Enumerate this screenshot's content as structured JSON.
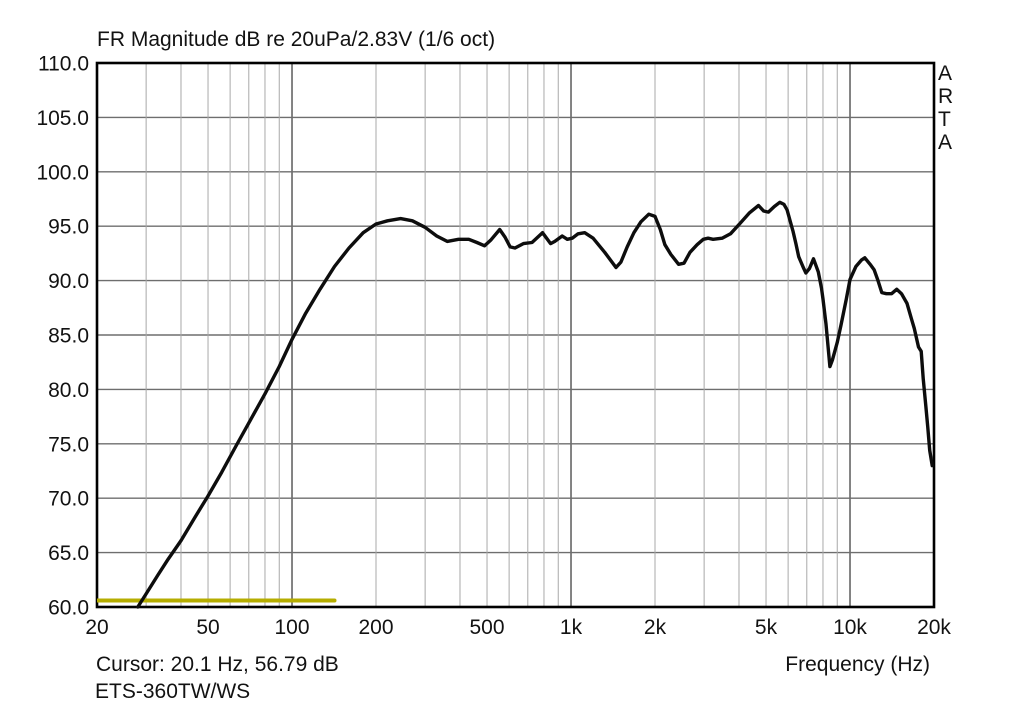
{
  "header": {
    "title": "FR Magnitude dB re 20uPa/2.83V (1/6 oct)"
  },
  "branding": {
    "name": "ARTA",
    "letters": [
      "A",
      "R",
      "T",
      "A"
    ]
  },
  "status": {
    "cursor_readout": "Cursor: 20.1 Hz, 56.79 dB",
    "file_label": "ETS-360TW/WS",
    "x_axis_label": "Frequency (Hz)"
  },
  "colors": {
    "background": "#ffffff",
    "text": "#121212",
    "plot_border": "#000000",
    "grid_major": "#6e6e6e",
    "grid_minor": "#a8a8a8",
    "curve": "#0d0d0d",
    "marker_line": "#b5ad00"
  },
  "chart_data": {
    "type": "line",
    "title": "FR Magnitude dB re 20uPa/2.83V (1/6 oct)",
    "xlabel": "Frequency (Hz)",
    "ylabel": "Magnitude dB re 20uPa/2.83V",
    "x_scale": "log",
    "xlim": [
      20,
      20000
    ],
    "ylim": [
      60,
      110
    ],
    "grid": "on",
    "legend": "none",
    "y_ticks": [
      {
        "value": 110,
        "label": "110.0"
      },
      {
        "value": 105,
        "label": "105.0"
      },
      {
        "value": 100,
        "label": "100.0"
      },
      {
        "value": 95,
        "label": "95.0"
      },
      {
        "value": 90,
        "label": "90.0"
      },
      {
        "value": 85,
        "label": "85.0"
      },
      {
        "value": 80,
        "label": "80.0"
      },
      {
        "value": 75,
        "label": "75.0"
      },
      {
        "value": 70,
        "label": "70.0"
      },
      {
        "value": 65,
        "label": "65.0"
      },
      {
        "value": 60,
        "label": "60.0"
      }
    ],
    "x_ticks": [
      {
        "value": 20,
        "label": "20"
      },
      {
        "value": 50,
        "label": "50"
      },
      {
        "value": 100,
        "label": "100"
      },
      {
        "value": 200,
        "label": "200"
      },
      {
        "value": 500,
        "label": "500"
      },
      {
        "value": 1000,
        "label": "1k"
      },
      {
        "value": 2000,
        "label": "2k"
      },
      {
        "value": 5000,
        "label": "5k"
      },
      {
        "value": 10000,
        "label": "10k"
      },
      {
        "value": 20000,
        "label": "20k"
      }
    ],
    "grid_lines": {
      "minor_freqs": [
        30,
        40,
        50,
        60,
        70,
        80,
        90,
        200,
        300,
        400,
        500,
        600,
        700,
        800,
        900,
        2000,
        3000,
        4000,
        5000,
        6000,
        7000,
        8000,
        9000
      ],
      "major_freqs": [
        100,
        1000,
        10000
      ],
      "db_lines": [
        65,
        70,
        75,
        80,
        85,
        90,
        95,
        100,
        105
      ]
    },
    "series": [
      {
        "name": "frequency-response",
        "color": "#0d0d0d",
        "width": 3.4,
        "points": [
          [
            28,
            60.0
          ],
          [
            30,
            61.2
          ],
          [
            33,
            62.9
          ],
          [
            36,
            64.4
          ],
          [
            40,
            66.1
          ],
          [
            45,
            68.3
          ],
          [
            50,
            70.2
          ],
          [
            56,
            72.4
          ],
          [
            63,
            74.8
          ],
          [
            71,
            77.2
          ],
          [
            80,
            79.6
          ],
          [
            90,
            82.1
          ],
          [
            100,
            84.6
          ],
          [
            112,
            87.0
          ],
          [
            126,
            89.2
          ],
          [
            142,
            91.3
          ],
          [
            160,
            93.0
          ],
          [
            180,
            94.4
          ],
          [
            200,
            95.2
          ],
          [
            220,
            95.5
          ],
          [
            245,
            95.7
          ],
          [
            270,
            95.5
          ],
          [
            300,
            94.9
          ],
          [
            330,
            94.1
          ],
          [
            360,
            93.6
          ],
          [
            395,
            93.8
          ],
          [
            430,
            93.8
          ],
          [
            460,
            93.5
          ],
          [
            490,
            93.2
          ],
          [
            515,
            93.7
          ],
          [
            555,
            94.7
          ],
          [
            580,
            94.0
          ],
          [
            605,
            93.1
          ],
          [
            630,
            93.0
          ],
          [
            675,
            93.4
          ],
          [
            725,
            93.5
          ],
          [
            790,
            94.4
          ],
          [
            845,
            93.4
          ],
          [
            875,
            93.6
          ],
          [
            930,
            94.1
          ],
          [
            970,
            93.8
          ],
          [
            1010,
            93.9
          ],
          [
            1060,
            94.3
          ],
          [
            1120,
            94.4
          ],
          [
            1200,
            93.9
          ],
          [
            1320,
            92.6
          ],
          [
            1450,
            91.2
          ],
          [
            1510,
            91.7
          ],
          [
            1590,
            93.1
          ],
          [
            1680,
            94.4
          ],
          [
            1780,
            95.4
          ],
          [
            1900,
            96.1
          ],
          [
            2000,
            95.9
          ],
          [
            2090,
            94.7
          ],
          [
            2170,
            93.3
          ],
          [
            2280,
            92.4
          ],
          [
            2430,
            91.5
          ],
          [
            2540,
            91.6
          ],
          [
            2670,
            92.6
          ],
          [
            2830,
            93.3
          ],
          [
            2980,
            93.8
          ],
          [
            3100,
            93.9
          ],
          [
            3230,
            93.8
          ],
          [
            3480,
            93.9
          ],
          [
            3730,
            94.3
          ],
          [
            4050,
            95.3
          ],
          [
            4350,
            96.2
          ],
          [
            4700,
            96.9
          ],
          [
            4900,
            96.4
          ],
          [
            5100,
            96.3
          ],
          [
            5350,
            96.8
          ],
          [
            5600,
            97.2
          ],
          [
            5800,
            97.0
          ],
          [
            5950,
            96.5
          ],
          [
            6100,
            95.5
          ],
          [
            6250,
            94.5
          ],
          [
            6400,
            93.4
          ],
          [
            6550,
            92.2
          ],
          [
            6800,
            91.2
          ],
          [
            6950,
            90.7
          ],
          [
            7150,
            91.1
          ],
          [
            7400,
            92.0
          ],
          [
            7700,
            90.8
          ],
          [
            7900,
            89.3
          ],
          [
            8000,
            88.3
          ],
          [
            8200,
            86.0
          ],
          [
            8350,
            83.8
          ],
          [
            8470,
            82.1
          ],
          [
            8650,
            82.7
          ],
          [
            9000,
            84.3
          ],
          [
            9300,
            86.0
          ],
          [
            9700,
            88.3
          ],
          [
            10000,
            90.1
          ],
          [
            10500,
            91.3
          ],
          [
            11000,
            91.9
          ],
          [
            11300,
            92.1
          ],
          [
            11800,
            91.5
          ],
          [
            12200,
            91.0
          ],
          [
            12600,
            90.0
          ],
          [
            13000,
            88.9
          ],
          [
            13500,
            88.8
          ],
          [
            14100,
            88.8
          ],
          [
            14700,
            89.2
          ],
          [
            15300,
            88.8
          ],
          [
            16000,
            87.9
          ],
          [
            16600,
            86.5
          ],
          [
            17000,
            85.6
          ],
          [
            17600,
            83.9
          ],
          [
            18000,
            83.5
          ],
          [
            18300,
            81.0
          ],
          [
            18700,
            78.4
          ],
          [
            19000,
            76.5
          ],
          [
            19300,
            74.4
          ],
          [
            19700,
            73.0
          ]
        ]
      },
      {
        "name": "cursor-marker-line",
        "color": "#b5ad00",
        "width": 4,
        "points": [
          [
            20,
            60.6
          ],
          [
            142,
            60.6
          ]
        ]
      }
    ]
  }
}
